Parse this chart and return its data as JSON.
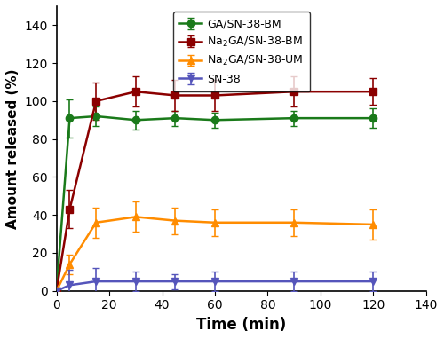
{
  "time": [
    0,
    5,
    15,
    30,
    45,
    60,
    90,
    120
  ],
  "ga_sn38_bm_y": [
    0,
    91,
    92,
    90,
    91,
    90,
    91,
    91
  ],
  "ga_sn38_bm_err": [
    0,
    10,
    5,
    5,
    4,
    4,
    4,
    5
  ],
  "na2ga_sn38_bm_y": [
    0,
    43,
    100,
    105,
    103,
    103,
    105,
    105
  ],
  "na2ga_sn38_bm_err": [
    0,
    10,
    10,
    8,
    8,
    8,
    8,
    7
  ],
  "na2ga_sn38_um_y": [
    0,
    14,
    36,
    39,
    37,
    36,
    36,
    35
  ],
  "na2ga_sn38_um_err": [
    0,
    5,
    8,
    8,
    7,
    7,
    7,
    8
  ],
  "sn38_y": [
    0,
    3,
    5,
    5,
    5,
    5,
    5,
    5
  ],
  "sn38_err": [
    0,
    8,
    7,
    5,
    4,
    5,
    5,
    5
  ],
  "color_ga_bm": "#1a7a1a",
  "color_na2ga_bm": "#8b0000",
  "color_na2ga_um": "#ff8c00",
  "color_sn38": "#5555bb",
  "xlabel": "Time (min)",
  "ylabel": "Amount released (%)",
  "xlim": [
    0,
    140
  ],
  "ylim": [
    0,
    150
  ],
  "xticks": [
    0,
    20,
    40,
    60,
    80,
    100,
    120,
    140
  ],
  "yticks": [
    0,
    20,
    40,
    60,
    80,
    100,
    120,
    140
  ],
  "legend_ga_bm": "GA/SN-38-BM",
  "legend_na2ga_bm": "Na$_2$GA/SN-38-BM",
  "legend_na2ga_um": "Na$_2$GA/SN-38-UM",
  "legend_sn38": "SN-38",
  "bg_color": "#ffffff",
  "figsize": [
    5.0,
    3.82
  ],
  "dpi": 100
}
